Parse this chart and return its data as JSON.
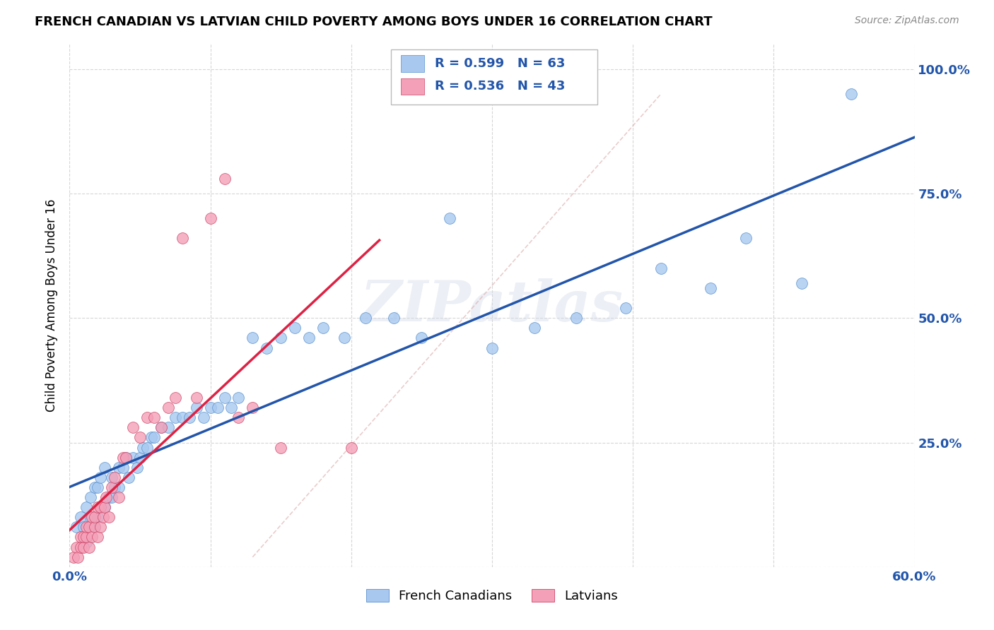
{
  "title": "FRENCH CANADIAN VS LATVIAN CHILD POVERTY AMONG BOYS UNDER 16 CORRELATION CHART",
  "source": "Source: ZipAtlas.com",
  "ylabel": "Child Poverty Among Boys Under 16",
  "french_color": "#A8C8F0",
  "latvian_color": "#F4A0B8",
  "french_edge_color": "#5590CC",
  "latvian_edge_color": "#CC4466",
  "french_line_color": "#2255AA",
  "latvian_line_color": "#DD2244",
  "french_R": 0.599,
  "french_N": 63,
  "latvian_R": 0.536,
  "latvian_N": 43,
  "watermark": "ZIPatlas",
  "background_color": "#FFFFFF",
  "grid_color": "#CCCCCC",
  "french_scatter_x": [
    0.005,
    0.008,
    0.01,
    0.012,
    0.012,
    0.015,
    0.015,
    0.018,
    0.018,
    0.02,
    0.02,
    0.022,
    0.022,
    0.025,
    0.025,
    0.028,
    0.03,
    0.03,
    0.032,
    0.035,
    0.035,
    0.038,
    0.04,
    0.042,
    0.045,
    0.048,
    0.05,
    0.052,
    0.055,
    0.058,
    0.06,
    0.065,
    0.07,
    0.075,
    0.08,
    0.085,
    0.09,
    0.095,
    0.1,
    0.105,
    0.11,
    0.115,
    0.12,
    0.13,
    0.14,
    0.15,
    0.16,
    0.17,
    0.18,
    0.195,
    0.21,
    0.23,
    0.25,
    0.27,
    0.3,
    0.33,
    0.36,
    0.395,
    0.42,
    0.455,
    0.48,
    0.52,
    0.555
  ],
  "french_scatter_y": [
    0.08,
    0.1,
    0.08,
    0.12,
    0.05,
    0.1,
    0.14,
    0.08,
    0.16,
    0.1,
    0.16,
    0.12,
    0.18,
    0.12,
    0.2,
    0.14,
    0.14,
    0.18,
    0.16,
    0.2,
    0.16,
    0.2,
    0.22,
    0.18,
    0.22,
    0.2,
    0.22,
    0.24,
    0.24,
    0.26,
    0.26,
    0.28,
    0.28,
    0.3,
    0.3,
    0.3,
    0.32,
    0.3,
    0.32,
    0.32,
    0.34,
    0.32,
    0.34,
    0.46,
    0.44,
    0.46,
    0.48,
    0.46,
    0.48,
    0.46,
    0.5,
    0.5,
    0.46,
    0.7,
    0.44,
    0.48,
    0.5,
    0.52,
    0.6,
    0.56,
    0.66,
    0.57,
    0.95
  ],
  "latvian_scatter_x": [
    0.003,
    0.005,
    0.006,
    0.008,
    0.008,
    0.01,
    0.01,
    0.012,
    0.012,
    0.014,
    0.014,
    0.016,
    0.016,
    0.018,
    0.018,
    0.02,
    0.02,
    0.022,
    0.022,
    0.024,
    0.025,
    0.026,
    0.028,
    0.03,
    0.032,
    0.035,
    0.038,
    0.04,
    0.045,
    0.05,
    0.055,
    0.06,
    0.065,
    0.07,
    0.075,
    0.08,
    0.09,
    0.1,
    0.11,
    0.12,
    0.13,
    0.15,
    0.2
  ],
  "latvian_scatter_y": [
    0.02,
    0.04,
    0.02,
    0.04,
    0.06,
    0.04,
    0.06,
    0.06,
    0.08,
    0.04,
    0.08,
    0.06,
    0.1,
    0.08,
    0.1,
    0.06,
    0.12,
    0.08,
    0.12,
    0.1,
    0.12,
    0.14,
    0.1,
    0.16,
    0.18,
    0.14,
    0.22,
    0.22,
    0.28,
    0.26,
    0.3,
    0.3,
    0.28,
    0.32,
    0.34,
    0.66,
    0.34,
    0.7,
    0.78,
    0.3,
    0.32,
    0.24,
    0.24
  ]
}
